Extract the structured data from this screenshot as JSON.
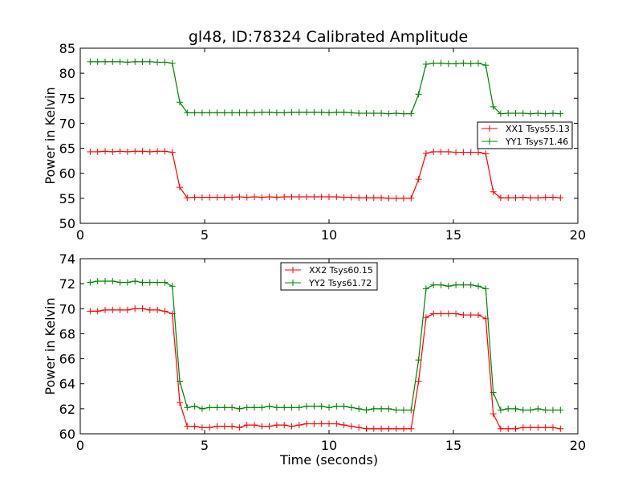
{
  "chart_data": [
    {
      "type": "line",
      "title": "gl48, ID:78324 Calibrated Amplitude",
      "xlabel": "",
      "ylabel": "Power in Kelvin",
      "xlim": [
        0,
        20
      ],
      "ylim": [
        50,
        85
      ],
      "xticks": [
        0,
        5,
        10,
        15,
        20
      ],
      "yticks": [
        50,
        55,
        60,
        65,
        70,
        75,
        80,
        85
      ],
      "legend_position": "center-right",
      "x": [
        0.4,
        0.7,
        1.0,
        1.3,
        1.6,
        1.9,
        2.2,
        2.5,
        2.8,
        3.1,
        3.4,
        3.7,
        4.0,
        4.3,
        4.6,
        4.9,
        5.2,
        5.5,
        5.8,
        6.1,
        6.4,
        6.7,
        7.0,
        7.3,
        7.6,
        7.9,
        8.2,
        8.5,
        8.8,
        9.1,
        9.4,
        9.7,
        10.0,
        10.3,
        10.6,
        10.9,
        11.2,
        11.5,
        11.8,
        12.1,
        12.4,
        12.7,
        13.0,
        13.3,
        13.6,
        13.9,
        14.2,
        14.5,
        14.8,
        15.1,
        15.4,
        15.7,
        16.0,
        16.3,
        16.6,
        16.9,
        17.2,
        17.5,
        17.8,
        18.1,
        18.4,
        18.7,
        19.0,
        19.3
      ],
      "series": [
        {
          "name": "XX1 Tsys55.13",
          "color": "#ff0000",
          "values": [
            64.3,
            64.3,
            64.4,
            64.3,
            64.4,
            64.3,
            64.4,
            64.4,
            64.3,
            64.4,
            64.4,
            64.2,
            57.2,
            55.1,
            55.2,
            55.2,
            55.2,
            55.2,
            55.2,
            55.2,
            55.3,
            55.2,
            55.3,
            55.2,
            55.3,
            55.2,
            55.3,
            55.3,
            55.3,
            55.3,
            55.3,
            55.3,
            55.3,
            55.3,
            55.2,
            55.2,
            55.1,
            55.1,
            55.1,
            55.1,
            55.0,
            55.0,
            55.0,
            55.0,
            58.8,
            64.0,
            64.3,
            64.3,
            64.3,
            64.2,
            64.2,
            64.2,
            64.2,
            63.9,
            56.3,
            55.1,
            55.1,
            55.1,
            55.2,
            55.1,
            55.1,
            55.2,
            55.2,
            55.1
          ]
        },
        {
          "name": "YY1 Tsys71.46",
          "color": "#008000",
          "values": [
            82.3,
            82.3,
            82.3,
            82.3,
            82.3,
            82.2,
            82.3,
            82.3,
            82.3,
            82.2,
            82.2,
            82.0,
            74.2,
            72.1,
            72.1,
            72.1,
            72.1,
            72.1,
            72.1,
            72.1,
            72.1,
            72.1,
            72.1,
            72.2,
            72.2,
            72.1,
            72.1,
            72.2,
            72.2,
            72.2,
            72.2,
            72.2,
            72.1,
            72.2,
            72.2,
            72.1,
            72.0,
            72.0,
            72.0,
            72.0,
            71.9,
            72.0,
            71.9,
            71.9,
            75.8,
            81.8,
            82.0,
            82.0,
            81.9,
            81.9,
            82.0,
            81.9,
            82.0,
            81.6,
            73.3,
            71.9,
            72.0,
            72.0,
            72.0,
            71.9,
            72.0,
            71.9,
            72.0,
            71.9
          ]
        }
      ]
    },
    {
      "type": "line",
      "title": "",
      "xlabel": "Time (seconds)",
      "ylabel": "Power in Kelvin",
      "xlim": [
        0,
        20
      ],
      "ylim": [
        60,
        74
      ],
      "xticks": [
        0,
        5,
        10,
        15,
        20
      ],
      "yticks": [
        60,
        62,
        64,
        66,
        68,
        70,
        72,
        74
      ],
      "legend_position": "top-center",
      "x": [
        0.4,
        0.7,
        1.0,
        1.3,
        1.6,
        1.9,
        2.2,
        2.5,
        2.8,
        3.1,
        3.4,
        3.7,
        4.0,
        4.3,
        4.6,
        4.9,
        5.2,
        5.5,
        5.8,
        6.1,
        6.4,
        6.7,
        7.0,
        7.3,
        7.6,
        7.9,
        8.2,
        8.5,
        8.8,
        9.1,
        9.4,
        9.7,
        10.0,
        10.3,
        10.6,
        10.9,
        11.2,
        11.5,
        11.8,
        12.1,
        12.4,
        12.7,
        13.0,
        13.3,
        13.6,
        13.9,
        14.2,
        14.5,
        14.8,
        15.1,
        15.4,
        15.7,
        16.0,
        16.3,
        16.6,
        16.9,
        17.2,
        17.5,
        17.8,
        18.1,
        18.4,
        18.7,
        19.0,
        19.3
      ],
      "series": [
        {
          "name": "XX2 Tsys60.15",
          "color": "#ff0000",
          "values": [
            69.8,
            69.8,
            69.9,
            69.9,
            69.9,
            69.9,
            70.0,
            70.0,
            69.9,
            69.9,
            69.8,
            69.6,
            62.5,
            60.6,
            60.6,
            60.5,
            60.5,
            60.6,
            60.6,
            60.6,
            60.5,
            60.7,
            60.7,
            60.6,
            60.6,
            60.7,
            60.7,
            60.6,
            60.7,
            60.8,
            60.8,
            60.8,
            60.8,
            60.8,
            60.7,
            60.6,
            60.5,
            60.4,
            60.4,
            60.4,
            60.4,
            60.4,
            60.4,
            60.4,
            64.2,
            69.3,
            69.6,
            69.6,
            69.6,
            69.6,
            69.5,
            69.5,
            69.5,
            69.2,
            61.6,
            60.4,
            60.4,
            60.4,
            60.5,
            60.5,
            60.5,
            60.5,
            60.5,
            60.4
          ]
        },
        {
          "name": "YY2 Tsys61.72",
          "color": "#008000",
          "values": [
            72.1,
            72.2,
            72.2,
            72.2,
            72.1,
            72.1,
            72.2,
            72.1,
            72.1,
            72.1,
            72.1,
            71.8,
            64.2,
            62.1,
            62.2,
            62.0,
            62.1,
            62.1,
            62.1,
            62.1,
            62.0,
            62.1,
            62.1,
            62.1,
            62.2,
            62.1,
            62.1,
            62.1,
            62.1,
            62.2,
            62.2,
            62.2,
            62.1,
            62.2,
            62.2,
            62.1,
            62.0,
            61.9,
            62.0,
            62.0,
            62.0,
            61.9,
            61.9,
            61.9,
            65.9,
            71.6,
            71.9,
            71.9,
            71.8,
            71.9,
            71.9,
            71.9,
            71.8,
            71.6,
            63.3,
            61.9,
            62.0,
            62.0,
            61.9,
            61.9,
            62.0,
            61.9,
            61.9,
            61.9
          ]
        }
      ]
    }
  ]
}
